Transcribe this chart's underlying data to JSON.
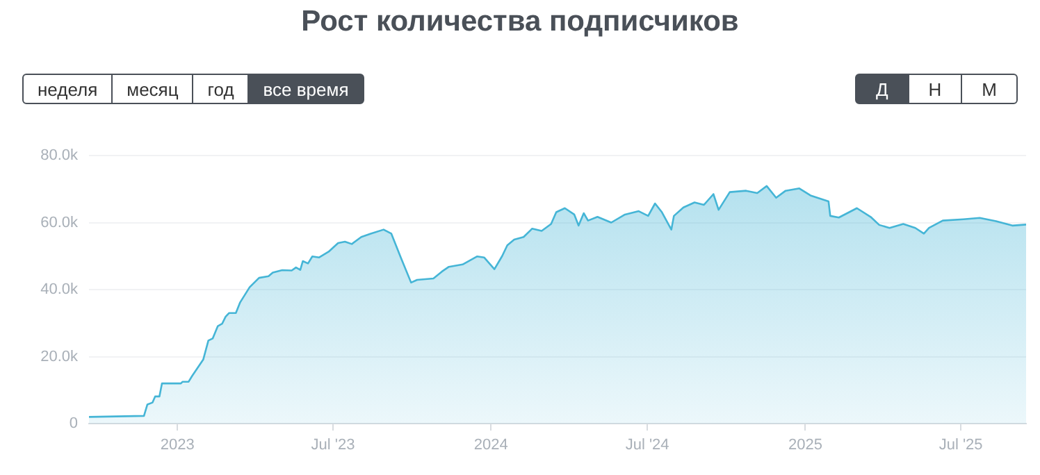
{
  "chart_data": {
    "type": "area",
    "title": "Рост количества подписчиков",
    "annotations": [
      "неделя",
      "месяц",
      "год",
      "все время",
      "Д",
      "Н",
      "М"
    ],
    "x": [
      "2022-09-20",
      "2022-11-23",
      "2022-11-27",
      "2022-12-03",
      "2022-12-06",
      "2022-12-11",
      "2022-12-14",
      "2023-01-05",
      "2023-01-07",
      "2023-01-14",
      "2023-01-18",
      "2023-01-31",
      "2023-02-06",
      "2023-02-11",
      "2023-02-17",
      "2023-02-22",
      "2023-02-26",
      "2023-03-02",
      "2023-03-10",
      "2023-03-15",
      "2023-03-26",
      "2023-04-06",
      "2023-04-17",
      "2023-04-22",
      "2023-05-03",
      "2023-05-14",
      "2023-05-19",
      "2023-05-24",
      "2023-05-27",
      "2023-06-02",
      "2023-06-07",
      "2023-06-15",
      "2023-06-26",
      "2023-07-07",
      "2023-07-15",
      "2023-07-23",
      "2023-08-03",
      "2023-08-14",
      "2023-08-29",
      "2023-09-07",
      "2023-09-18",
      "2023-09-30",
      "2023-10-07",
      "2023-10-26",
      "2023-11-05",
      "2023-11-13",
      "2023-11-29",
      "2023-12-16",
      "2023-12-24",
      "2024-01-05",
      "2024-01-14",
      "2024-01-20",
      "2024-01-28",
      "2024-02-08",
      "2024-02-18",
      "2024-02-29",
      "2024-03-11",
      "2024-03-17",
      "2024-03-27",
      "2024-04-07",
      "2024-04-12",
      "2024-04-18",
      "2024-04-23",
      "2024-05-04",
      "2024-05-20",
      "2024-06-05",
      "2024-06-21",
      "2024-07-02",
      "2024-07-10",
      "2024-07-18",
      "2024-07-29",
      "2024-08-01",
      "2024-08-12",
      "2024-08-25",
      "2024-09-05",
      "2024-09-16",
      "2024-09-22",
      "2024-10-05",
      "2024-10-24",
      "2024-11-06",
      "2024-11-17",
      "2024-11-28",
      "2024-12-09",
      "2024-12-25",
      "2025-01-07",
      "2025-01-28",
      "2025-01-30",
      "2025-02-09",
      "2025-03-02",
      "2025-03-18",
      "2025-03-28",
      "2025-04-09",
      "2025-04-25",
      "2025-05-09",
      "2025-05-19",
      "2025-05-25",
      "2025-06-10",
      "2025-07-04",
      "2025-07-23",
      "2025-08-11",
      "2025-08-30",
      "2025-09-15"
    ],
    "series": [
      {
        "color": "#45b5d6",
        "values": [
          2000,
          2300,
          5700,
          6300,
          8100,
          8100,
          12000,
          12000,
          12500,
          12500,
          14200,
          19100,
          24800,
          25400,
          29100,
          29800,
          31900,
          33000,
          33000,
          36200,
          40700,
          43500,
          44000,
          45100,
          45800,
          45700,
          46600,
          45900,
          48500,
          47800,
          49900,
          49600,
          51300,
          53900,
          54300,
          53600,
          55700,
          56700,
          57900,
          56700,
          49600,
          42100,
          42900,
          43300,
          45400,
          46800,
          47500,
          49900,
          49600,
          46100,
          50000,
          53200,
          54900,
          55700,
          58200,
          57500,
          59600,
          63100,
          64300,
          62400,
          59100,
          62800,
          60600,
          61700,
          60000,
          62400,
          63400,
          62000,
          65700,
          63100,
          57900,
          62000,
          64500,
          66000,
          65300,
          68500,
          63800,
          69100,
          69500,
          68800,
          70900,
          67400,
          69500,
          70200,
          68100,
          66300,
          62000,
          61500,
          64300,
          61700,
          59300,
          58400,
          59600,
          58400,
          56700,
          58400,
          60600,
          61000,
          61400,
          60400,
          59100,
          59400
        ]
      }
    ],
    "xlim": [
      "2022-09-20",
      "2025-09-15"
    ],
    "xticks": [
      {
        "value": "2023-01-01",
        "label": "2023"
      },
      {
        "value": "2023-07-01",
        "label": "Jul '23"
      },
      {
        "value": "2024-01-01",
        "label": "2024"
      },
      {
        "value": "2024-07-01",
        "label": "Jul '24"
      },
      {
        "value": "2025-01-01",
        "label": "2025"
      },
      {
        "value": "2025-07-01",
        "label": "Jul '25"
      }
    ],
    "ylim": [
      0,
      80000
    ],
    "yticks": [
      0,
      {
        "value": 20000,
        "label": "20.0k"
      },
      {
        "value": 40000,
        "label": "40.0k"
      },
      {
        "value": 60000,
        "label": "60.0k"
      },
      {
        "value": 80000,
        "label": "80.0k"
      }
    ],
    "grid": "y",
    "legend": false,
    "marker": "none",
    "line_style": "solid"
  }
}
